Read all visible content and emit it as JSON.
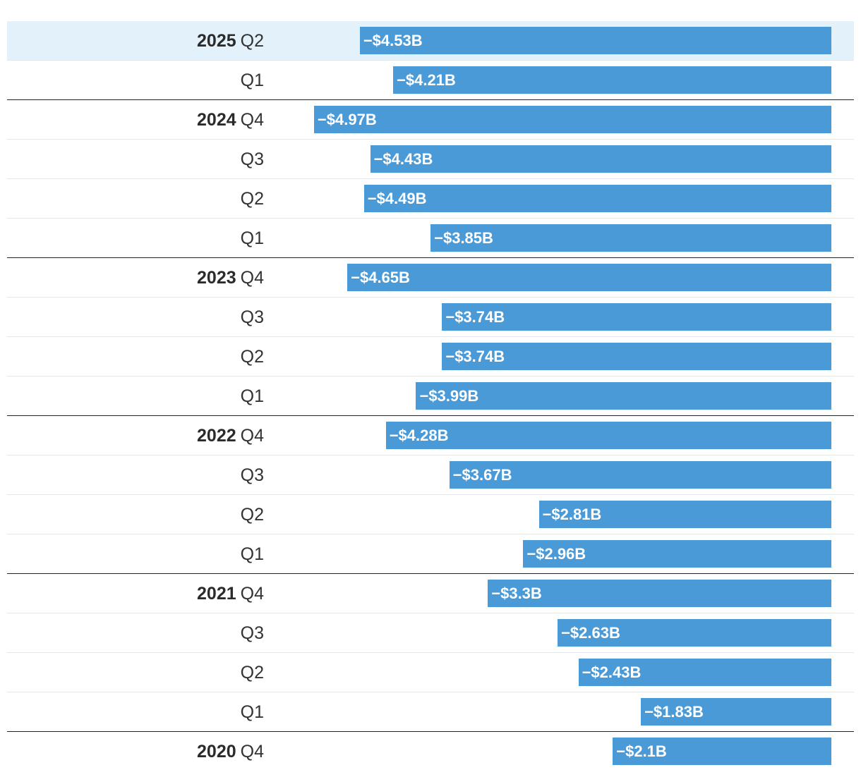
{
  "chart_data": {
    "type": "bar",
    "orientation": "horizontal",
    "value_unit": "billions USD",
    "axis_max_abs": 5.0,
    "highlighted": "2025 Q2",
    "rows": [
      {
        "year": "2025",
        "quarter": "Q2",
        "value": -4.53,
        "label": "−$4.53B"
      },
      {
        "year": "",
        "quarter": "Q1",
        "value": -4.21,
        "label": "−$4.21B"
      },
      {
        "year": "2024",
        "quarter": "Q4",
        "value": -4.97,
        "label": "−$4.97B"
      },
      {
        "year": "",
        "quarter": "Q3",
        "value": -4.43,
        "label": "−$4.43B"
      },
      {
        "year": "",
        "quarter": "Q2",
        "value": -4.49,
        "label": "−$4.49B"
      },
      {
        "year": "",
        "quarter": "Q1",
        "value": -3.85,
        "label": "−$3.85B"
      },
      {
        "year": "2023",
        "quarter": "Q4",
        "value": -4.65,
        "label": "−$4.65B"
      },
      {
        "year": "",
        "quarter": "Q3",
        "value": -3.74,
        "label": "−$3.74B"
      },
      {
        "year": "",
        "quarter": "Q2",
        "value": -3.74,
        "label": "−$3.74B"
      },
      {
        "year": "",
        "quarter": "Q1",
        "value": -3.99,
        "label": "−$3.99B"
      },
      {
        "year": "2022",
        "quarter": "Q4",
        "value": -4.28,
        "label": "−$4.28B"
      },
      {
        "year": "",
        "quarter": "Q3",
        "value": -3.67,
        "label": "−$3.67B"
      },
      {
        "year": "",
        "quarter": "Q2",
        "value": -2.81,
        "label": "−$2.81B"
      },
      {
        "year": "",
        "quarter": "Q1",
        "value": -2.96,
        "label": "−$2.96B"
      },
      {
        "year": "2021",
        "quarter": "Q4",
        "value": -3.3,
        "label": "−$3.3B"
      },
      {
        "year": "",
        "quarter": "Q3",
        "value": -2.63,
        "label": "−$2.63B"
      },
      {
        "year": "",
        "quarter": "Q2",
        "value": -2.43,
        "label": "−$2.43B"
      },
      {
        "year": "",
        "quarter": "Q1",
        "value": -1.83,
        "label": "−$1.83B"
      },
      {
        "year": "2020",
        "quarter": "Q4",
        "value": -2.1,
        "label": "−$2.1B"
      }
    ]
  },
  "colors": {
    "bar": "#4a9ad7",
    "highlight_row": "#e3f1fb",
    "bar_text": "#ffffff"
  }
}
